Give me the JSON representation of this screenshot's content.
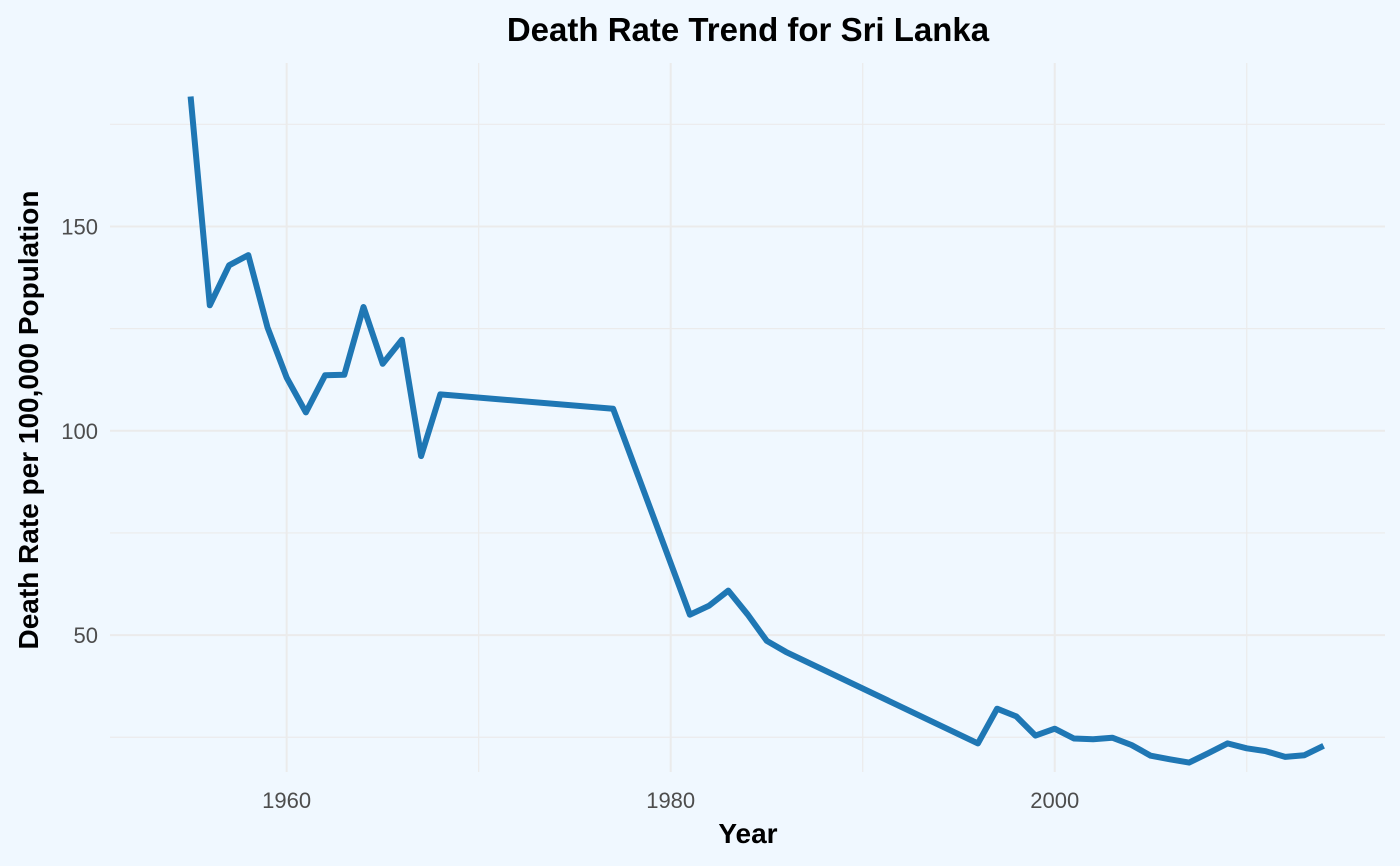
{
  "chart_data": {
    "type": "line",
    "title": "Death Rate Trend for Sri Lanka",
    "xlabel": "Year",
    "ylabel": "Death Rate per 100,000 Population",
    "xlim": [
      1950.8,
      2017.2
    ],
    "ylim": [
      16.5,
      190
    ],
    "x_ticks": [
      1960,
      1980,
      2000
    ],
    "y_ticks": [
      50,
      100,
      150
    ],
    "x_minor": [
      1950,
      1970,
      1990,
      2010
    ],
    "y_minor": [
      25,
      75,
      125,
      175
    ],
    "grid": true,
    "legend": "none",
    "colors": {
      "line": "#1f77b4",
      "background": "#f0f8ff",
      "grid": "#ebebeb"
    },
    "series": [
      {
        "x": [
          1955,
          1956,
          1957,
          1958,
          1959,
          1960,
          1961,
          1962,
          1963,
          1964,
          1965,
          1966,
          1967,
          1968,
          1977,
          1981,
          1982,
          1983,
          1984,
          1985,
          1986,
          1996,
          1997,
          1998,
          1999,
          2000,
          2001,
          2002,
          2003,
          2004,
          2005,
          2006,
          2007,
          2008,
          2009,
          2010,
          2011,
          2012,
          2013,
          2014
        ],
        "y": [
          181.8,
          130.7,
          140.5,
          143.0,
          125.3,
          113.0,
          104.5,
          113.6,
          113.7,
          130.3,
          116.4,
          122.3,
          93.8,
          108.9,
          105.4,
          55.0,
          57.2,
          60.9,
          55.1,
          48.6,
          45.9,
          23.5,
          32.0,
          30.1,
          25.4,
          27.1,
          24.7,
          24.5,
          24.9,
          23.1,
          20.5,
          19.6,
          18.8,
          21.1,
          23.5,
          22.3,
          21.6,
          20.2,
          20.6,
          22.9
        ]
      }
    ]
  }
}
